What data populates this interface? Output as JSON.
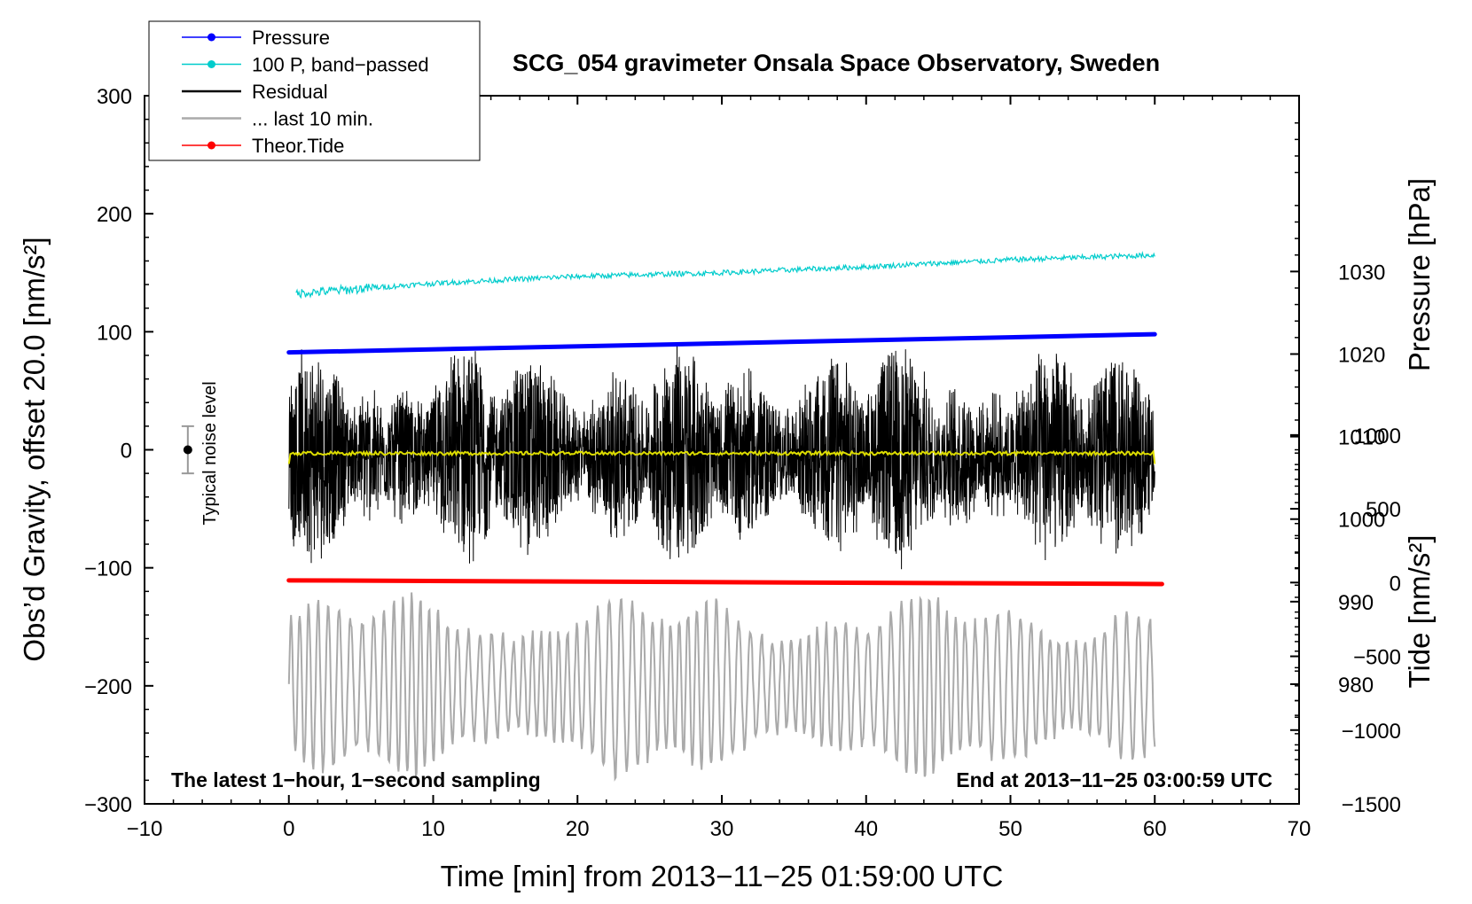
{
  "chart_data": {
    "type": "line",
    "title": "SCG_054 gravimeter Onsala Space Observatory, Sweden",
    "xlabel": "Time [min] from 2013−11−25 01:59:00 UTC",
    "ylabel_left": "Obs’d Gravity, offset 20.0 [nm/s²]",
    "ylabel_right_pressure": "Pressure [hPa]",
    "ylabel_right_tide": "Tide [nm/s²]",
    "xlim": [
      -10,
      70
    ],
    "ylim": [
      -300,
      300
    ],
    "x_ticks": [
      -10,
      0,
      10,
      20,
      30,
      40,
      50,
      60,
      70
    ],
    "x_tick_labels": [
      "−10",
      "0",
      "10",
      "20",
      "30",
      "40",
      "50",
      "60",
      "70"
    ],
    "y_ticks": [
      300,
      200,
      100,
      0,
      -100,
      -200,
      -300
    ],
    "y_tick_labels": [
      "300",
      "200",
      "100",
      "0",
      "−100",
      "−200",
      "−300"
    ],
    "pressure_axis": {
      "ticks": [
        1030,
        1020,
        1010,
        1000,
        990,
        980
      ],
      "tick_labels": [
        "1030",
        "1020",
        "1010",
        "1000",
        "990",
        "980"
      ],
      "range": [
        965.5,
        1051.3
      ]
    },
    "tide_axis": {
      "ticks": [
        1000,
        500,
        0,
        -500,
        -1000,
        -1500
      ],
      "tick_labels": [
        "1000",
        "500",
        "0",
        "−500",
        "−1000",
        "−1500"
      ],
      "range": [
        -1500,
        3300
      ]
    },
    "legend": [
      {
        "label": "Pressure",
        "color": "#0000ff",
        "marker": true
      },
      {
        "label": "100 P, band−passed",
        "color": "#00cccc",
        "marker": true
      },
      {
        "label": "Residual",
        "color": "#000000",
        "marker": false
      },
      {
        "label": "... last 10 min.",
        "color": "#aaaaaa",
        "marker": false
      },
      {
        "label": "Theor.Tide",
        "color": "#ff0000",
        "marker": true
      }
    ],
    "series": [
      {
        "name": "Pressure",
        "color": "#0000ff",
        "axis": "pressure",
        "x": [
          0,
          60
        ],
        "values": [
          1020.2,
          1022.4
        ]
      },
      {
        "name": "100 P, band−passed",
        "color": "#00cccc",
        "axis": "left",
        "x": [
          0,
          10,
          20,
          30,
          40,
          50,
          60
        ],
        "values": [
          132,
          141,
          147,
          150,
          155,
          161,
          165
        ]
      },
      {
        "name": "Residual",
        "color": "#000000",
        "axis": "left",
        "x_range": [
          0,
          60
        ],
        "amplitude": 90
      },
      {
        "name": "... last 10 min.",
        "color": "#aaaaaa",
        "axis": "left",
        "x_range": [
          0,
          60
        ],
        "center": -200,
        "amplitude": 80
      },
      {
        "name": "Theor.Tide",
        "color": "#ff0000",
        "axis": "tide",
        "x": [
          0,
          60.5
        ],
        "values": [
          15,
          -10
        ]
      },
      {
        "name": "yellow trace",
        "color": "#dddd00",
        "axis": "left",
        "x_range": [
          0,
          60
        ],
        "values": [
          -3,
          -3
        ]
      }
    ],
    "noise_level": {
      "label": "Typical noise level",
      "x": -7,
      "center": 0,
      "half_range": 20
    },
    "annotations": {
      "left": "The latest 1−hour, 1−second sampling",
      "right": "End at 2013−11−25 03:00:59 UTC"
    }
  }
}
